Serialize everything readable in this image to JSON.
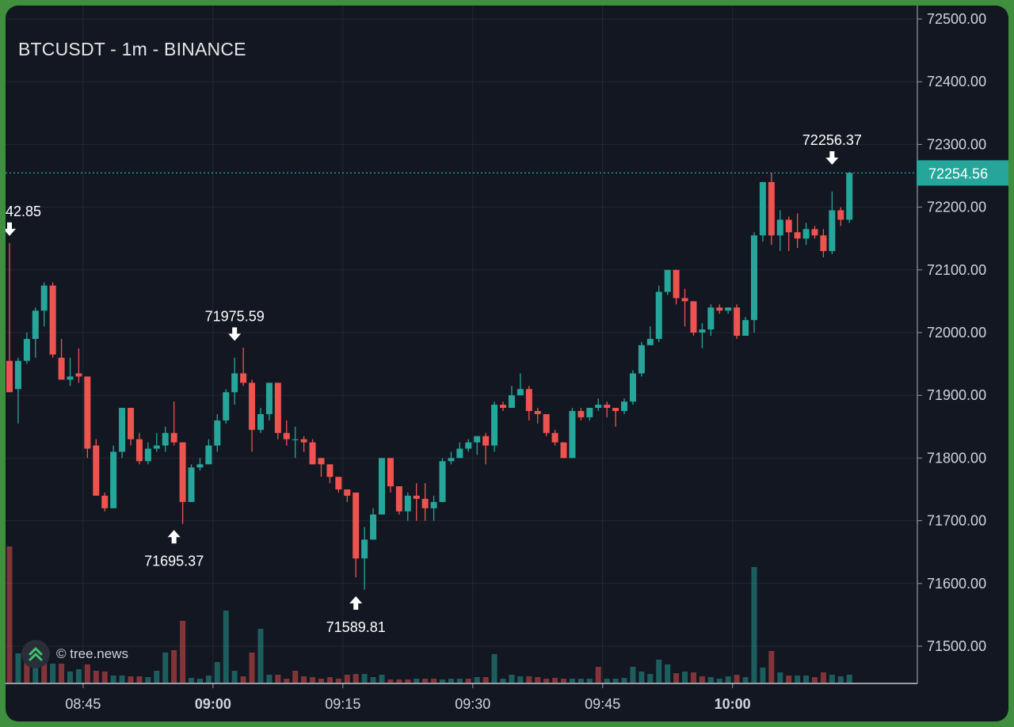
{
  "title": "BTCUSDT - 1m - BINANCE",
  "watermark": "© tree.news",
  "colors": {
    "up": "#26a69a",
    "down": "#ef5350",
    "background": "#131722",
    "grid": "#232733",
    "axis_text": "#d1d4dc",
    "price_line": "#26a69a"
  },
  "chart_data": {
    "type": "candlestick",
    "title": "BTCUSDT - 1m - BINANCE",
    "ylim": [
      71430,
      72515
    ],
    "y_ticks": [
      "72500.00",
      "72400.00",
      "72300.00",
      "72200.00",
      "72100.00",
      "72000.00",
      "71900.00",
      "71800.00",
      "71700.00",
      "71600.00",
      "71500.00"
    ],
    "x_ticks": [
      {
        "label": "08:45",
        "bold": false,
        "index": 8.5
      },
      {
        "label": "09:00",
        "bold": true,
        "index": 23.5
      },
      {
        "label": "09:15",
        "bold": false,
        "index": 38.5
      },
      {
        "label": "09:30",
        "bold": false,
        "index": 53.5
      },
      {
        "label": "09:45",
        "bold": false,
        "index": 68.5
      },
      {
        "label": "10:00",
        "bold": true,
        "index": 83.5
      }
    ],
    "last_price": "72254.56",
    "last_price_value": 72254.56,
    "annotations": [
      {
        "text": "42.85",
        "index": 0,
        "price": 72142.85,
        "type": "high"
      },
      {
        "text": "71975.59",
        "index": 26,
        "price": 71975.59,
        "type": "high"
      },
      {
        "text": "71695.37",
        "index": 19,
        "price": 71695.37,
        "type": "low"
      },
      {
        "text": "71589.81",
        "index": 40,
        "price": 71589.81,
        "type": "low"
      },
      {
        "text": "72256.37",
        "index": 95,
        "price": 72256.37,
        "type": "high"
      }
    ],
    "candles": [
      [
        71955,
        72143,
        71905,
        71905
      ],
      [
        71910,
        71960,
        71855,
        71955
      ],
      [
        71955,
        72000,
        71950,
        71990
      ],
      [
        71990,
        72040,
        71960,
        72035
      ],
      [
        72035,
        72080,
        72010,
        72075
      ],
      [
        72075,
        72080,
        71960,
        71965
      ],
      [
        71960,
        71990,
        71930,
        71925
      ],
      [
        71925,
        71960,
        71915,
        71930
      ],
      [
        71935,
        71975,
        71920,
        71930
      ],
      [
        71930,
        71930,
        71800,
        71815
      ],
      [
        71820,
        71830,
        71740,
        71740
      ],
      [
        71740,
        71745,
        71715,
        71720
      ],
      [
        71720,
        71820,
        71720,
        71810
      ],
      [
        71810,
        71880,
        71800,
        71880
      ],
      [
        71880,
        71880,
        71820,
        71830
      ],
      [
        71830,
        71840,
        71790,
        71795
      ],
      [
        71795,
        71825,
        71790,
        71815
      ],
      [
        71815,
        71840,
        71810,
        71820
      ],
      [
        71820,
        71850,
        71810,
        71840
      ],
      [
        71840,
        71890,
        71820,
        71825
      ],
      [
        71825,
        71825,
        71695,
        71730
      ],
      [
        71730,
        71790,
        71730,
        71785
      ],
      [
        71785,
        71800,
        71780,
        71790
      ],
      [
        71790,
        71830,
        71790,
        71820
      ],
      [
        71820,
        71870,
        71810,
        71860
      ],
      [
        71860,
        71910,
        71855,
        71905
      ],
      [
        71905,
        71960,
        71885,
        71935
      ],
      [
        71935,
        71976,
        71915,
        71920
      ],
      [
        71920,
        71925,
        71810,
        71845
      ],
      [
        71845,
        71880,
        71840,
        71870
      ],
      [
        71870,
        71920,
        71860,
        71920
      ],
      [
        71920,
        71920,
        71830,
        71840
      ],
      [
        71840,
        71860,
        71820,
        71830
      ],
      [
        71830,
        71850,
        71800,
        71830
      ],
      [
        71830,
        71835,
        71810,
        71825
      ],
      [
        71825,
        71830,
        71790,
        71790
      ],
      [
        71800,
        71800,
        71770,
        71790
      ],
      [
        71790,
        71790,
        71760,
        71770
      ],
      [
        71770,
        71770,
        71745,
        71750
      ],
      [
        71750,
        71750,
        71730,
        71740
      ],
      [
        71745,
        71745,
        71610,
        71640
      ],
      [
        71640,
        71690,
        71590,
        71670
      ],
      [
        71670,
        71720,
        71670,
        71710
      ],
      [
        71710,
        71800,
        71710,
        71800
      ],
      [
        71800,
        71800,
        71745,
        71755
      ],
      [
        71755,
        71755,
        71710,
        71715
      ],
      [
        71715,
        71745,
        71700,
        71740
      ],
      [
        71740,
        71760,
        71700,
        71735
      ],
      [
        71735,
        71760,
        71700,
        71720
      ],
      [
        71720,
        71740,
        71700,
        71730
      ],
      [
        71730,
        71800,
        71730,
        71795
      ],
      [
        71795,
        71810,
        71790,
        71800
      ],
      [
        71800,
        71825,
        71800,
        71815
      ],
      [
        71815,
        71830,
        71810,
        71825
      ],
      [
        71825,
        71835,
        71805,
        71835
      ],
      [
        71835,
        71840,
        71790,
        71820
      ],
      [
        71820,
        71890,
        71810,
        71885
      ],
      [
        71885,
        71890,
        71875,
        71880
      ],
      [
        71880,
        71915,
        71880,
        71900
      ],
      [
        71900,
        71935,
        71900,
        71910
      ],
      [
        71910,
        71915,
        71860,
        71875
      ],
      [
        71875,
        71880,
        71855,
        71870
      ],
      [
        71870,
        71870,
        71835,
        71840
      ],
      [
        71840,
        71845,
        71820,
        71825
      ],
      [
        71825,
        71825,
        71800,
        71800
      ],
      [
        71800,
        71880,
        71800,
        71875
      ],
      [
        71875,
        71880,
        71860,
        71865
      ],
      [
        71865,
        71880,
        71860,
        71880
      ],
      [
        71880,
        71895,
        71875,
        71885
      ],
      [
        71885,
        71890,
        71865,
        71880
      ],
      [
        71880,
        71880,
        71850,
        71875
      ],
      [
        71875,
        71895,
        71870,
        71890
      ],
      [
        71890,
        71940,
        71885,
        71935
      ],
      [
        71935,
        71985,
        71930,
        71980
      ],
      [
        71980,
        72010,
        71980,
        71990
      ],
      [
        71990,
        72075,
        71985,
        72065
      ],
      [
        72065,
        72100,
        72060,
        72100
      ],
      [
        72100,
        72100,
        72045,
        72055
      ],
      [
        72055,
        72070,
        72010,
        72050
      ],
      [
        72050,
        72050,
        71995,
        72000
      ],
      [
        72000,
        72015,
        71975,
        72005
      ],
      [
        72005,
        72045,
        71995,
        72040
      ],
      [
        72040,
        72045,
        72030,
        72035
      ],
      [
        72035,
        72040,
        72030,
        72040
      ],
      [
        72040,
        72045,
        71990,
        71995
      ],
      [
        71995,
        72025,
        71995,
        72020
      ],
      [
        72020,
        72160,
        72000,
        72155
      ],
      [
        72155,
        72240,
        72145,
        72240
      ],
      [
        72240,
        72255,
        72140,
        72155
      ],
      [
        72155,
        72195,
        72130,
        72180
      ],
      [
        72180,
        72185,
        72130,
        72160
      ],
      [
        72160,
        72190,
        72135,
        72150
      ],
      [
        72150,
        72175,
        72140,
        72165
      ],
      [
        72165,
        72170,
        72150,
        72155
      ],
      [
        72155,
        72165,
        72120,
        72130
      ],
      [
        72130,
        72225,
        72125,
        72195
      ],
      [
        72195,
        72200,
        72170,
        72180
      ],
      [
        72180,
        72256.37,
        72175,
        72254.56
      ]
    ],
    "volumes": [
      {
        "v": 172,
        "up": false
      },
      {
        "v": 37,
        "up": true
      },
      {
        "v": 27,
        "up": false
      },
      {
        "v": 23,
        "up": true
      },
      {
        "v": 25,
        "up": false
      },
      {
        "v": 24,
        "up": true
      },
      {
        "v": 24,
        "up": false
      },
      {
        "v": 14,
        "up": true
      },
      {
        "v": 17,
        "up": true
      },
      {
        "v": 23,
        "up": false
      },
      {
        "v": 15,
        "up": false
      },
      {
        "v": 14,
        "up": false
      },
      {
        "v": 9,
        "up": true
      },
      {
        "v": 9,
        "up": true
      },
      {
        "v": 8,
        "up": false
      },
      {
        "v": 8,
        "up": false
      },
      {
        "v": 7,
        "up": true
      },
      {
        "v": 15,
        "up": true
      },
      {
        "v": 38,
        "up": true
      },
      {
        "v": 41,
        "up": false
      },
      {
        "v": 78,
        "up": false
      },
      {
        "v": 6,
        "up": true
      },
      {
        "v": 5,
        "up": true
      },
      {
        "v": 9,
        "up": true
      },
      {
        "v": 26,
        "up": true
      },
      {
        "v": 91,
        "up": true
      },
      {
        "v": 15,
        "up": true
      },
      {
        "v": 8,
        "up": false
      },
      {
        "v": 38,
        "up": false
      },
      {
        "v": 68,
        "up": true
      },
      {
        "v": 10,
        "up": true
      },
      {
        "v": 10,
        "up": false
      },
      {
        "v": 5,
        "up": false
      },
      {
        "v": 15,
        "up": false
      },
      {
        "v": 8,
        "up": false
      },
      {
        "v": 7,
        "up": false
      },
      {
        "v": 5,
        "up": false
      },
      {
        "v": 7,
        "up": false
      },
      {
        "v": 5,
        "up": false
      },
      {
        "v": 10,
        "up": false
      },
      {
        "v": 11,
        "up": false
      },
      {
        "v": 11,
        "up": true
      },
      {
        "v": 7,
        "up": true
      },
      {
        "v": 10,
        "up": true
      },
      {
        "v": 4,
        "up": false
      },
      {
        "v": 4,
        "up": false
      },
      {
        "v": 4,
        "up": false
      },
      {
        "v": 5,
        "up": true
      },
      {
        "v": 5,
        "up": false
      },
      {
        "v": 5,
        "up": false
      },
      {
        "v": 4,
        "up": true
      },
      {
        "v": 5,
        "up": true
      },
      {
        "v": 5,
        "up": true
      },
      {
        "v": 5,
        "up": false
      },
      {
        "v": 7,
        "up": true
      },
      {
        "v": 7,
        "up": false
      },
      {
        "v": 36,
        "up": true
      },
      {
        "v": 5,
        "up": true
      },
      {
        "v": 10,
        "up": true
      },
      {
        "v": 8,
        "up": true
      },
      {
        "v": 8,
        "up": false
      },
      {
        "v": 7,
        "up": false
      },
      {
        "v": 5,
        "up": false
      },
      {
        "v": 6,
        "up": false
      },
      {
        "v": 5,
        "up": false
      },
      {
        "v": 5,
        "up": true
      },
      {
        "v": 5,
        "up": true
      },
      {
        "v": 5,
        "up": true
      },
      {
        "v": 20,
        "up": false
      },
      {
        "v": 5,
        "up": true
      },
      {
        "v": 5,
        "up": true
      },
      {
        "v": 6,
        "up": true
      },
      {
        "v": 20,
        "up": true
      },
      {
        "v": 14,
        "up": true
      },
      {
        "v": 11,
        "up": true
      },
      {
        "v": 29,
        "up": true
      },
      {
        "v": 23,
        "up": true
      },
      {
        "v": 12,
        "up": false
      },
      {
        "v": 14,
        "up": true
      },
      {
        "v": 13,
        "up": false
      },
      {
        "v": 8,
        "up": false
      },
      {
        "v": 7,
        "up": true
      },
      {
        "v": 5,
        "up": true
      },
      {
        "v": 8,
        "up": true
      },
      {
        "v": 10,
        "up": false
      },
      {
        "v": 7,
        "up": true
      },
      {
        "v": 146,
        "up": true
      },
      {
        "v": 19,
        "up": true
      },
      {
        "v": 40,
        "up": false
      },
      {
        "v": 13,
        "up": true
      },
      {
        "v": 9,
        "up": false
      },
      {
        "v": 9,
        "up": true
      },
      {
        "v": 9,
        "up": true
      },
      {
        "v": 7,
        "up": false
      },
      {
        "v": 13,
        "up": false
      },
      {
        "v": 10,
        "up": true
      },
      {
        "v": 8,
        "up": true
      },
      {
        "v": 10,
        "up": true
      }
    ]
  }
}
